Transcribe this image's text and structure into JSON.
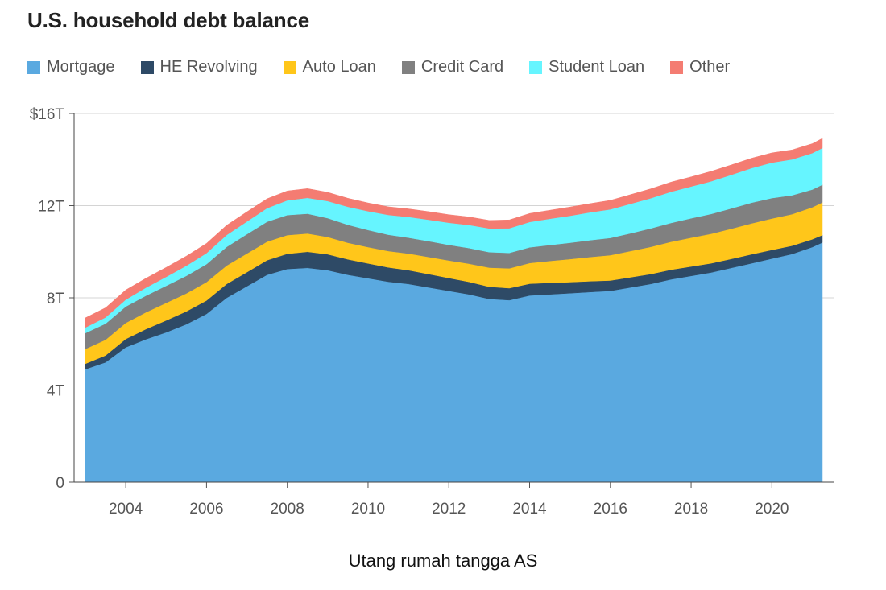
{
  "chart_data": {
    "type": "area",
    "stacked": true,
    "title": "U.S. household debt balance",
    "xlabel": "",
    "ylabel": "",
    "ylim": [
      0,
      16
    ],
    "xlim": [
      2003.0,
      2021.25
    ],
    "yticks": [
      {
        "value": 0,
        "label": "0"
      },
      {
        "value": 4,
        "label": "4T"
      },
      {
        "value": 8,
        "label": "8T"
      },
      {
        "value": 12,
        "label": "12T"
      },
      {
        "value": 16,
        "label": "$16T"
      }
    ],
    "xticks": [
      {
        "value": 2004,
        "label": "2004"
      },
      {
        "value": 2006,
        "label": "2006"
      },
      {
        "value": 2008,
        "label": "2008"
      },
      {
        "value": 2010,
        "label": "2010"
      },
      {
        "value": 2012,
        "label": "2012"
      },
      {
        "value": 2014,
        "label": "2014"
      },
      {
        "value": 2016,
        "label": "2016"
      },
      {
        "value": 2018,
        "label": "2018"
      },
      {
        "value": 2020,
        "label": "2020"
      }
    ],
    "grid": true,
    "legend_position": "top-left",
    "x": [
      2003.0,
      2003.5,
      2004.0,
      2004.5,
      2005.0,
      2005.5,
      2006.0,
      2006.5,
      2007.0,
      2007.5,
      2008.0,
      2008.5,
      2009.0,
      2009.5,
      2010.0,
      2010.5,
      2011.0,
      2011.5,
      2012.0,
      2012.5,
      2013.0,
      2013.5,
      2014.0,
      2014.5,
      2015.0,
      2015.5,
      2016.0,
      2016.5,
      2017.0,
      2017.5,
      2018.0,
      2018.5,
      2019.0,
      2019.5,
      2020.0,
      2020.5,
      2021.0,
      2021.25
    ],
    "series": [
      {
        "name": "Mortgage",
        "color": "#5aa9e0",
        "values": [
          4.9,
          5.2,
          5.85,
          6.2,
          6.5,
          6.85,
          7.3,
          8.0,
          8.5,
          9.0,
          9.25,
          9.3,
          9.2,
          9.0,
          8.85,
          8.7,
          8.6,
          8.45,
          8.3,
          8.15,
          7.95,
          7.9,
          8.1,
          8.15,
          8.2,
          8.25,
          8.3,
          8.45,
          8.6,
          8.8,
          8.95,
          9.1,
          9.3,
          9.5,
          9.7,
          9.9,
          10.2,
          10.4
        ]
      },
      {
        "name": "HE Revolving",
        "color": "#2e4a66",
        "values": [
          0.24,
          0.3,
          0.36,
          0.44,
          0.52,
          0.56,
          0.58,
          0.6,
          0.61,
          0.63,
          0.66,
          0.7,
          0.69,
          0.67,
          0.64,
          0.62,
          0.6,
          0.58,
          0.56,
          0.54,
          0.53,
          0.52,
          0.51,
          0.5,
          0.48,
          0.47,
          0.45,
          0.44,
          0.43,
          0.42,
          0.41,
          0.4,
          0.39,
          0.39,
          0.38,
          0.36,
          0.34,
          0.32
        ]
      },
      {
        "name": "Auto Loan",
        "color": "#ffc61a",
        "values": [
          0.64,
          0.68,
          0.7,
          0.73,
          0.76,
          0.78,
          0.8,
          0.8,
          0.81,
          0.81,
          0.81,
          0.79,
          0.75,
          0.72,
          0.71,
          0.71,
          0.72,
          0.74,
          0.76,
          0.79,
          0.83,
          0.86,
          0.9,
          0.95,
          1.0,
          1.05,
          1.1,
          1.14,
          1.18,
          1.21,
          1.25,
          1.28,
          1.31,
          1.34,
          1.36,
          1.37,
          1.39,
          1.42
        ]
      },
      {
        "name": "Credit Card",
        "color": "#808080",
        "values": [
          0.69,
          0.7,
          0.71,
          0.72,
          0.74,
          0.76,
          0.78,
          0.81,
          0.84,
          0.86,
          0.87,
          0.86,
          0.82,
          0.78,
          0.74,
          0.71,
          0.69,
          0.69,
          0.68,
          0.68,
          0.67,
          0.67,
          0.68,
          0.69,
          0.71,
          0.73,
          0.75,
          0.77,
          0.8,
          0.82,
          0.84,
          0.86,
          0.88,
          0.9,
          0.89,
          0.82,
          0.77,
          0.77
        ]
      },
      {
        "name": "Student Loan",
        "color": "#66f5ff",
        "values": [
          0.24,
          0.27,
          0.3,
          0.35,
          0.39,
          0.44,
          0.48,
          0.52,
          0.55,
          0.59,
          0.64,
          0.69,
          0.74,
          0.78,
          0.82,
          0.86,
          0.9,
          0.93,
          0.96,
          1.0,
          1.03,
          1.07,
          1.1,
          1.14,
          1.17,
          1.21,
          1.24,
          1.28,
          1.31,
          1.35,
          1.38,
          1.42,
          1.46,
          1.5,
          1.54,
          1.56,
          1.58,
          1.59
        ]
      },
      {
        "name": "Other",
        "color": "#f47c72",
        "values": [
          0.42,
          0.42,
          0.42,
          0.41,
          0.41,
          0.42,
          0.42,
          0.42,
          0.42,
          0.41,
          0.41,
          0.4,
          0.38,
          0.37,
          0.36,
          0.35,
          0.35,
          0.35,
          0.35,
          0.35,
          0.35,
          0.36,
          0.37,
          0.37,
          0.38,
          0.38,
          0.39,
          0.4,
          0.41,
          0.42,
          0.42,
          0.43,
          0.43,
          0.43,
          0.42,
          0.41,
          0.41,
          0.42
        ]
      }
    ],
    "caption": "Utang rumah tangga AS"
  }
}
